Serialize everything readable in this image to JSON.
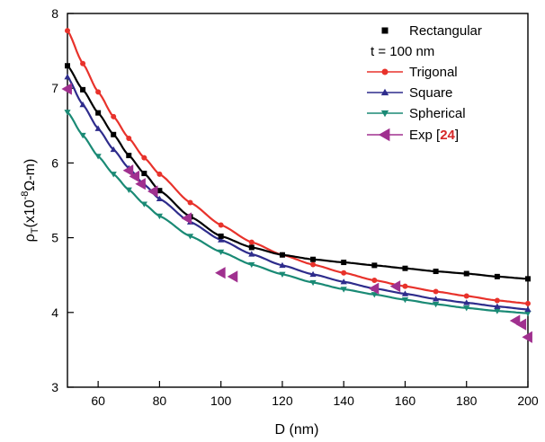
{
  "chart_data": {
    "type": "scatter",
    "xlabel": "D (nm)",
    "ylabel": "ρT(x10-8Ω-m)",
    "ylabel_parts": {
      "rho": "ρ",
      "sub": "T",
      "pre": "(x10",
      "sup": "-8",
      "post": "Ω-m)"
    },
    "xlim": [
      50,
      200
    ],
    "ylim": [
      3,
      8
    ],
    "xticks": [
      "60",
      "80",
      "100",
      "120",
      "140",
      "160",
      "180",
      "200"
    ],
    "yticks": [
      "3",
      "4",
      "5",
      "6",
      "7",
      "8"
    ],
    "legend_position": "top-right",
    "legend_note": "t = 100 nm",
    "exp_label_prefix": "Exp [",
    "exp_ref": "24",
    "exp_label_suffix": "]",
    "exp_ref_color": "#d62728",
    "series": [
      {
        "name": "Rectangular",
        "color": "#000000",
        "marker": "square",
        "x": [
          50,
          55,
          60,
          65,
          70,
          75,
          80,
          90,
          100,
          110,
          120,
          130,
          140,
          150,
          160,
          170,
          180,
          190,
          200
        ],
        "y": [
          7.3,
          6.98,
          6.67,
          6.38,
          6.1,
          5.86,
          5.63,
          5.28,
          5.02,
          4.87,
          4.77,
          4.71,
          4.67,
          4.63,
          4.59,
          4.55,
          4.52,
          4.48,
          4.45
        ]
      },
      {
        "name": "Trigonal",
        "color": "#e8322b",
        "marker": "circle",
        "x": [
          50,
          55,
          60,
          65,
          70,
          75,
          80,
          90,
          100,
          110,
          120,
          130,
          140,
          150,
          160,
          170,
          180,
          190,
          200
        ],
        "y": [
          7.77,
          7.33,
          6.95,
          6.62,
          6.33,
          6.07,
          5.85,
          5.47,
          5.17,
          4.94,
          4.77,
          4.64,
          4.53,
          4.43,
          4.35,
          4.28,
          4.22,
          4.16,
          4.12
        ]
      },
      {
        "name": "Square",
        "color": "#2e2c8c",
        "marker": "triangle-up",
        "x": [
          50,
          55,
          60,
          65,
          70,
          75,
          80,
          90,
          100,
          110,
          120,
          130,
          140,
          150,
          160,
          170,
          180,
          190,
          200
        ],
        "y": [
          7.15,
          6.78,
          6.46,
          6.18,
          5.93,
          5.71,
          5.52,
          5.21,
          4.97,
          4.78,
          4.63,
          4.51,
          4.41,
          4.32,
          4.25,
          4.18,
          4.13,
          4.08,
          4.04
        ]
      },
      {
        "name": "Spherical",
        "color": "#1a8a75",
        "marker": "triangle-down",
        "x": [
          50,
          55,
          60,
          65,
          70,
          75,
          80,
          90,
          100,
          110,
          120,
          130,
          140,
          150,
          160,
          170,
          180,
          190,
          200
        ],
        "y": [
          6.68,
          6.37,
          6.09,
          5.85,
          5.64,
          5.45,
          5.29,
          5.02,
          4.81,
          4.64,
          4.51,
          4.4,
          4.31,
          4.24,
          4.17,
          4.11,
          4.06,
          4.02,
          3.99
        ]
      },
      {
        "name": "Exp [24]",
        "color": "#a0308f",
        "marker": "triangle-left",
        "x": [
          50,
          70,
          72,
          74,
          78,
          89,
          100,
          104,
          150,
          157,
          196,
          198,
          200
        ],
        "y": [
          6.99,
          5.9,
          5.82,
          5.72,
          5.62,
          5.26,
          4.53,
          4.48,
          4.32,
          4.35,
          3.89,
          3.84,
          3.67
        ]
      }
    ]
  }
}
